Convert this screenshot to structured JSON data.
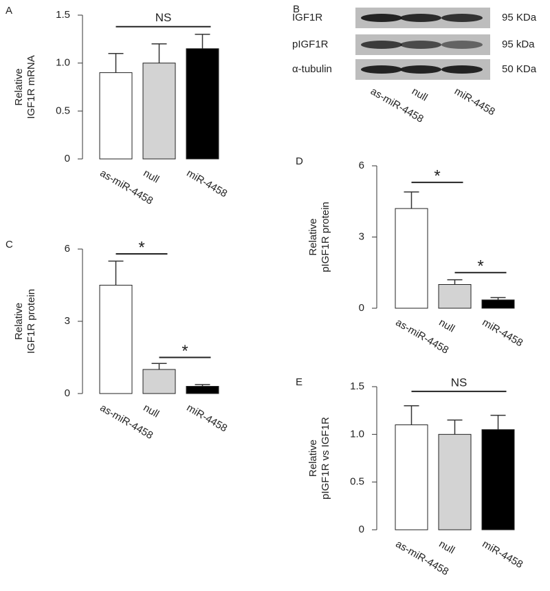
{
  "chart_data": [
    {
      "type": "bar",
      "panel": "A",
      "ylabel": [
        "Relative",
        "IGF1R mRNA"
      ],
      "categories": [
        "as-miR-4458",
        "null",
        "miR-4458"
      ],
      "values": [
        0.9,
        1.0,
        1.15
      ],
      "errors": [
        0.2,
        0.2,
        0.15
      ],
      "colors": [
        "#ffffff",
        "#d3d3d3",
        "#000000"
      ],
      "ylim": [
        0,
        1.5
      ],
      "yticks": [
        0,
        0.5,
        {
          "value": 1,
          "label": "1.0"
        },
        1.5
      ],
      "annotations": [
        {
          "text": "NS",
          "from": 0,
          "to": 2,
          "y": 1.38
        }
      ]
    },
    {
      "type": "bar",
      "panel": "C",
      "ylabel": [
        "Relative",
        "IGF1R protein"
      ],
      "categories": [
        "as-miR-4458",
        "null",
        "miR-4458"
      ],
      "values": [
        4.5,
        1.0,
        0.3
      ],
      "errors": [
        1.0,
        0.25,
        0.07
      ],
      "colors": [
        "#ffffff",
        "#d3d3d3",
        "#000000"
      ],
      "ylim": [
        0,
        6
      ],
      "yticks": [
        0,
        3,
        6
      ],
      "annotations": [
        {
          "text": "*",
          "from": 0,
          "to": 1,
          "y": 5.8
        },
        {
          "text": "*",
          "from": 1,
          "to": 2,
          "y": 1.5
        }
      ]
    },
    {
      "type": "bar",
      "panel": "D",
      "ylabel": [
        "Relative",
        "pIGF1R protein"
      ],
      "categories": [
        "as-miR-4458",
        "null",
        "miR-4458"
      ],
      "values": [
        4.2,
        1.0,
        0.35
      ],
      "errors": [
        0.7,
        0.2,
        0.1
      ],
      "colors": [
        "#ffffff",
        "#d3d3d3",
        "#000000"
      ],
      "ylim": [
        0,
        6
      ],
      "yticks": [
        0,
        3,
        6
      ],
      "annotations": [
        {
          "text": "*",
          "from": 0,
          "to": 1,
          "y": 5.3
        },
        {
          "text": "*",
          "from": 1,
          "to": 2,
          "y": 1.5
        }
      ]
    },
    {
      "type": "bar",
      "panel": "E",
      "ylabel": [
        "Relative",
        "pIGF1R vs IGF1R"
      ],
      "categories": [
        "as-miR-4458",
        "null",
        "miR-4458"
      ],
      "values": [
        1.1,
        1.0,
        1.05
      ],
      "errors": [
        0.2,
        0.15,
        0.15
      ],
      "colors": [
        "#ffffff",
        "#d3d3d3",
        "#000000"
      ],
      "ylim": [
        0,
        1.5
      ],
      "yticks": [
        0,
        0.5,
        {
          "value": 1,
          "label": "1.0"
        },
        1.5
      ],
      "annotations": [
        {
          "text": "NS",
          "from": 0,
          "to": 2,
          "y": 1.45
        }
      ]
    }
  ],
  "blot": {
    "panel": "B",
    "rows": [
      "IGF1R",
      "pIGF1R",
      "α-tubulin"
    ],
    "sizes": [
      "95 KDa",
      "95 kDa",
      "50 KDa"
    ],
    "lanes": [
      "as-miR-4458",
      "null",
      "miR-4458"
    ]
  }
}
